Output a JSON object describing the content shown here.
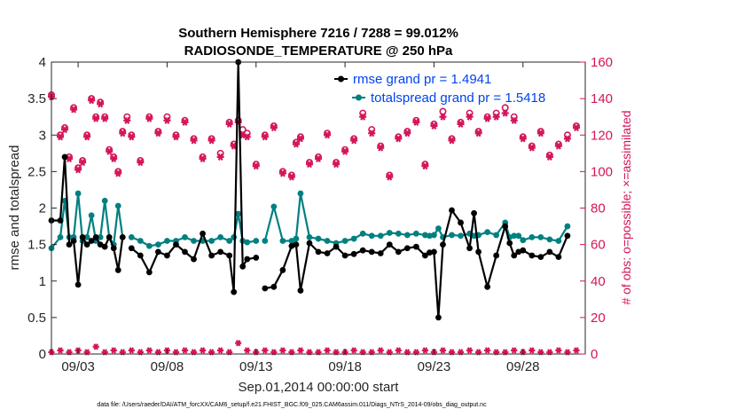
{
  "title_line1": "Southern Hemisphere 7216 / 7288 = 99.012%",
  "title_line2": "RADIOSONDE_TEMPERATURE @ 250 hPa",
  "xlabel": "Sep.01,2014 00:00:00 start",
  "footer": "data file: /Users/raeder/DAI/ATM_forcXX/CAM6_setup/f.e21.FHIST_BGC.f09_025.CAM6assim.011/Diags_NTrS_2014-09/obs_diag_output.nc",
  "colors": {
    "rmse": "#000000",
    "spread": "#008080",
    "obs": "#d4145a",
    "legend_text": "#0044ee"
  },
  "chart_data": {
    "type": "line",
    "title": "Southern Hemisphere 7216 / 7288 = 99.012%",
    "subtitle": "RADIOSONDE_TEMPERATURE @ 250 hPa",
    "xlabel": "Sep.01,2014 00:00:00 start",
    "ylabel": "rmse and totalspread",
    "ylabel_right": "# of obs: o=possible; ×=assimilated",
    "xlim": [
      1.5,
      31.5
    ],
    "ylim": [
      0,
      4
    ],
    "ylim_right": [
      0,
      160
    ],
    "x_tick_positions": [
      3,
      8,
      13,
      18,
      23,
      28
    ],
    "x_tick_labels": [
      "09/03",
      "09/08",
      "09/13",
      "09/18",
      "09/23",
      "09/28"
    ],
    "y_ticks": [
      0,
      0.5,
      1,
      1.5,
      2,
      2.5,
      3,
      3.5,
      4
    ],
    "y_tick_labels": [
      "0",
      "0.5",
      "1",
      "1.5",
      "2",
      "2.5",
      "3",
      "3.5",
      "4"
    ],
    "y_right_ticks": [
      0,
      20,
      40,
      60,
      80,
      100,
      120,
      140,
      160
    ],
    "y_right_tick_labels": [
      "0",
      "20",
      "40",
      "60",
      "80",
      "100",
      "120",
      "140",
      "160"
    ],
    "legend": [
      "rmse grand pr = 1.4941",
      "totalspread grand pr = 1.5418"
    ],
    "x": [
      1.5,
      2.0,
      2.25,
      2.5,
      2.75,
      3.0,
      3.25,
      3.5,
      3.75,
      4.0,
      4.25,
      4.5,
      4.75,
      5.0,
      5.25,
      5.5,
      5.75,
      6.0,
      6.5,
      7.0,
      7.5,
      8.0,
      8.5,
      9.0,
      9.5,
      10.0,
      10.5,
      11.0,
      11.5,
      11.75,
      12.0,
      12.25,
      12.5,
      13.0,
      13.25,
      13.5,
      14.0,
      14.5,
      15.0,
      15.25,
      15.5,
      16.0,
      16.5,
      17.0,
      17.5,
      18.0,
      18.5,
      19.0,
      19.5,
      20.0,
      20.5,
      21.0,
      21.5,
      22.0,
      22.5,
      22.75,
      23.0,
      23.25,
      23.5,
      24.0,
      24.5,
      25.0,
      25.25,
      25.5,
      26.0,
      26.5,
      27.0,
      27.25,
      27.5,
      27.75,
      28.0,
      28.5,
      29.0,
      29.5,
      30.0,
      30.5,
      31.0
    ],
    "series": [
      {
        "name": "rmse",
        "values": [
          1.83,
          1.83,
          2.7,
          1.5,
          1.55,
          0.95,
          1.6,
          1.5,
          1.55,
          1.6,
          1.5,
          1.47,
          1.6,
          1.45,
          1.15,
          1.6,
          null,
          1.45,
          1.35,
          1.12,
          1.4,
          1.35,
          1.5,
          1.4,
          1.3,
          1.65,
          1.35,
          1.4,
          1.35,
          0.85,
          4.0,
          1.2,
          1.3,
          1.32,
          null,
          0.9,
          0.92,
          1.15,
          1.48,
          1.5,
          0.87,
          1.52,
          1.4,
          1.38,
          1.47,
          1.35,
          1.37,
          1.42,
          1.4,
          1.38,
          1.5,
          1.4,
          1.45,
          1.47,
          1.35,
          1.39,
          1.4,
          0.5,
          1.5,
          1.97,
          1.8,
          1.45,
          1.93,
          1.4,
          0.92,
          1.35,
          1.75,
          1.52,
          1.35,
          1.4,
          1.42,
          1.35,
          1.33,
          1.4,
          1.33,
          1.62,
          null
        ]
      },
      {
        "name": "totalspread",
        "values": [
          1.45,
          1.6,
          2.1,
          1.6,
          1.6,
          2.2,
          1.55,
          1.6,
          1.9,
          1.55,
          1.6,
          2.1,
          1.6,
          1.5,
          2.03,
          1.6,
          null,
          1.6,
          1.55,
          1.48,
          1.5,
          1.55,
          1.55,
          1.6,
          1.55,
          1.55,
          1.55,
          1.6,
          1.55,
          1.6,
          1.92,
          1.55,
          1.53,
          1.55,
          null,
          1.55,
          2.02,
          1.55,
          1.55,
          1.58,
          2.2,
          1.6,
          1.58,
          1.55,
          1.52,
          1.55,
          1.58,
          1.65,
          1.62,
          1.62,
          1.66,
          1.65,
          1.63,
          1.65,
          1.63,
          1.62,
          1.63,
          1.72,
          1.6,
          1.63,
          1.62,
          1.65,
          1.62,
          1.63,
          1.67,
          1.63,
          1.8,
          1.6,
          1.62,
          1.62,
          1.56,
          1.6,
          1.6,
          1.57,
          1.55,
          1.75,
          null
        ]
      }
    ],
    "obs_x": [
      1.5,
      2.0,
      2.25,
      2.5,
      2.75,
      3.0,
      3.25,
      3.5,
      3.75,
      4.0,
      4.25,
      4.5,
      4.75,
      5.0,
      5.25,
      5.5,
      5.75,
      6.0,
      6.5,
      7.0,
      7.5,
      8.0,
      8.5,
      9.0,
      9.5,
      10.0,
      10.5,
      11.0,
      11.5,
      11.75,
      12.0,
      12.25,
      12.5,
      13.0,
      13.5,
      14.0,
      14.5,
      15.0,
      15.25,
      15.5,
      16.0,
      16.5,
      17.0,
      17.5,
      18.0,
      18.5,
      19.0,
      19.5,
      20.0,
      20.5,
      21.0,
      21.5,
      22.0,
      22.5,
      23.0,
      23.5,
      24.0,
      24.5,
      25.0,
      25.5,
      26.0,
      26.5,
      27.0,
      27.5,
      28.0,
      28.5,
      29.0,
      29.5,
      30.0,
      30.5,
      31.0
    ],
    "obs_possible": [
      142,
      120,
      124,
      108,
      135,
      102,
      106,
      120,
      140,
      130,
      138,
      130,
      112,
      108,
      100,
      122,
      130,
      120,
      106,
      130,
      122,
      130,
      120,
      128,
      118,
      108,
      118,
      110,
      127,
      115,
      128,
      123,
      121,
      104,
      120,
      125,
      100,
      98,
      116,
      119,
      105,
      108,
      121,
      105,
      112,
      118,
      132,
      123,
      114,
      98,
      119,
      122,
      128,
      104,
      126,
      133,
      118,
      127,
      132,
      122,
      130,
      132,
      135,
      130,
      119,
      114,
      122,
      109,
      115,
      120,
      125
    ],
    "obs_assimilated": [
      141,
      119,
      123,
      107,
      134,
      101,
      105,
      119,
      139,
      129,
      137,
      129,
      111,
      107,
      99,
      121,
      128,
      119,
      105,
      129,
      121,
      128,
      119,
      127,
      117,
      107,
      117,
      108,
      126,
      114,
      127,
      120,
      119,
      103,
      119,
      124,
      99,
      97,
      115,
      118,
      104,
      107,
      120,
      104,
      111,
      117,
      130,
      121,
      113,
      97,
      118,
      121,
      127,
      103,
      125,
      130,
      117,
      126,
      130,
      121,
      129,
      130,
      132,
      128,
      118,
      113,
      121,
      108,
      114,
      118,
      124
    ],
    "obs_rejected_x": [
      1.5,
      2.0,
      2.5,
      3.0,
      3.5,
      4.0,
      4.5,
      5.0,
      5.5,
      6.0,
      6.5,
      7.0,
      7.5,
      8.0,
      8.5,
      9.0,
      9.5,
      10.0,
      10.5,
      11.0,
      11.5,
      12.0,
      12.5,
      13.0,
      13.5,
      14.0,
      14.5,
      15.0,
      15.5,
      16.0,
      16.5,
      17.0,
      17.5,
      18.0,
      18.5,
      19.0,
      19.5,
      20.0,
      20.5,
      21.0,
      21.5,
      22.0,
      22.5,
      23.0,
      23.5,
      24.0,
      24.5,
      25.0,
      25.5,
      26.0,
      26.5,
      27.0,
      27.5,
      28.0,
      28.5,
      29.0,
      29.5,
      30.0,
      30.5,
      31.0
    ],
    "obs_rejected": [
      1,
      2,
      1,
      2,
      1,
      4,
      1,
      2,
      1,
      2,
      1,
      2,
      1,
      2,
      1,
      2,
      1,
      2,
      1,
      2,
      1,
      6,
      2,
      1,
      2,
      1,
      2,
      1,
      2,
      1,
      1,
      2,
      1,
      1,
      2,
      1,
      1,
      2,
      1,
      2,
      1,
      1,
      2,
      1,
      2,
      1,
      1,
      2,
      1,
      2,
      1,
      1,
      2,
      1,
      2,
      1,
      1,
      2,
      1,
      2
    ]
  }
}
